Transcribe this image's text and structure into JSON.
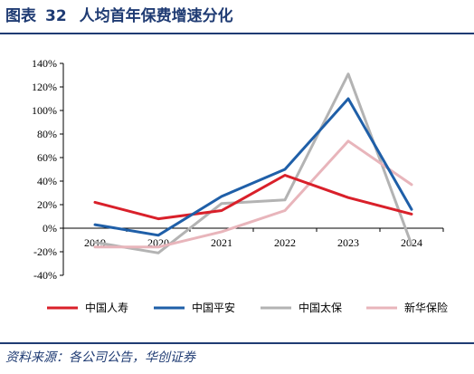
{
  "header": {
    "label": "图表",
    "number": "32",
    "title": "人均首年保费增速分化"
  },
  "source": "资料来源：各公司公告，华创证券",
  "chart_data": {
    "type": "line",
    "x": [
      "2019",
      "2020",
      "2021",
      "2022",
      "2023",
      "2024"
    ],
    "yticks": [
      "140%",
      "120%",
      "100%",
      "80%",
      "60%",
      "40%",
      "20%",
      "0%",
      "-20%",
      "-40%"
    ],
    "ylim": [
      -40,
      140
    ],
    "ystep": 20,
    "unit": "%",
    "grid": false,
    "legend_position": "bottom",
    "series": [
      {
        "name": "中国人寿",
        "color": "#d9202a",
        "values": [
          22,
          8,
          15,
          45,
          26,
          12
        ]
      },
      {
        "name": "中国平安",
        "color": "#1f5fa8",
        "values": [
          3,
          -6,
          27,
          50,
          110,
          16
        ]
      },
      {
        "name": "中国太保",
        "color": "#b3b3b3",
        "values": [
          -12,
          -21,
          21,
          24,
          131,
          -14
        ]
      },
      {
        "name": "新华保险",
        "color": "#e8b5bb",
        "values": [
          -16,
          -16,
          -3,
          15,
          74,
          37
        ]
      }
    ]
  }
}
